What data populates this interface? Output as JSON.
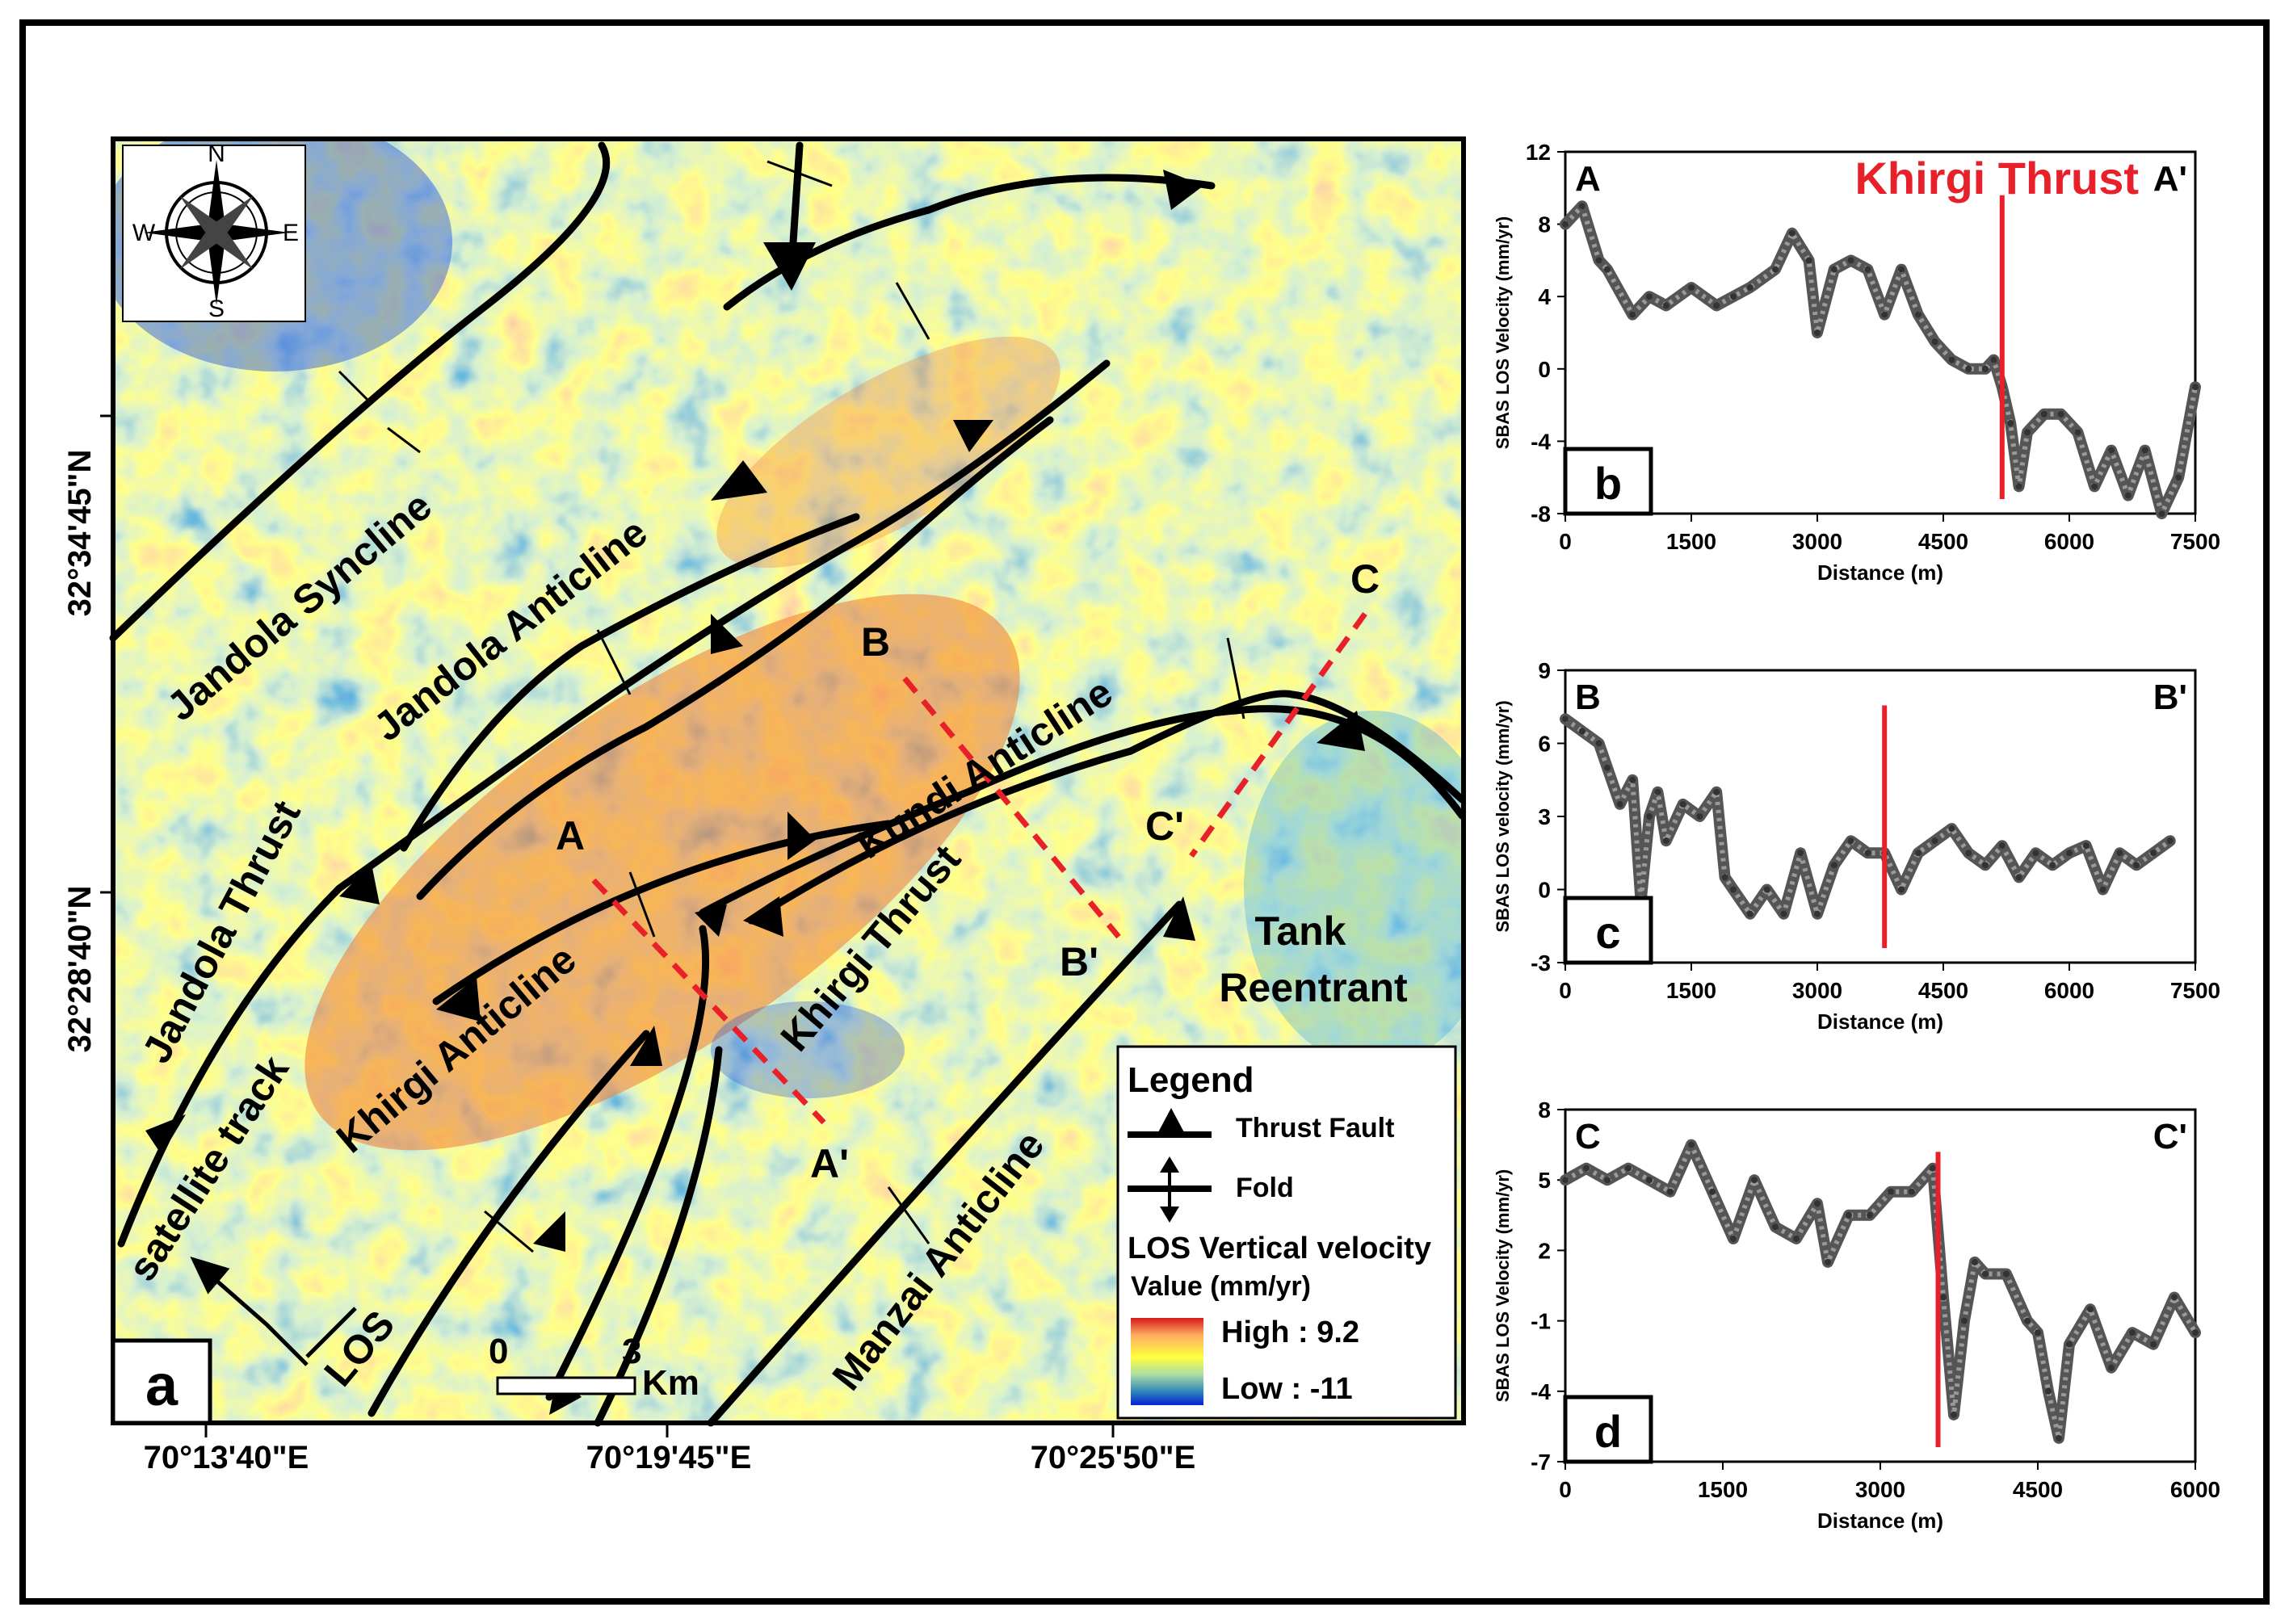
{
  "map": {
    "panel_label": "a",
    "north_arrow": {
      "n": "N",
      "s": "S",
      "e": "E",
      "w": "W"
    },
    "lat_labels": [
      "32°34'45\"N",
      "32°28'40\"N"
    ],
    "lon_labels": [
      "70°13'40\"E",
      "70°19'45\"E",
      "70°25'50\"E"
    ],
    "structures": [
      "Jandola Syncline",
      "Jandola Anticline",
      "Jandola Thrust",
      "Kundi Anticline",
      "Khirgi Anticline",
      "Khirgi Thrust",
      "Manzai Anticline"
    ],
    "region_label": [
      "Tank",
      "Reentrant"
    ],
    "satellite_track": "satellite track",
    "los": "LOS",
    "profile_points": {
      "a": "A",
      "a_end": "A'",
      "b": "B",
      "b_end": "B'",
      "c": "C",
      "c_end": "C'"
    },
    "scale_bar": {
      "start": "0",
      "end": "3",
      "unit": "Km"
    },
    "legend": {
      "title": "Legend",
      "thrust": "Thrust Fault",
      "fold": "Fold",
      "velocity_title": "LOS Vertical velocity",
      "value_label": "Value (mm/yr)",
      "high": "High : 9.2",
      "low": "Low : -11",
      "high_value": 9.2,
      "low_value": -11
    },
    "colors": {
      "fault": "#000000",
      "profile_line": "#e8202a",
      "ramp": [
        "#d7191c",
        "#fdae61",
        "#ffff40",
        "#abdda4",
        "#2b83ba",
        "#0a1fd8"
      ]
    }
  },
  "chart_data": [
    {
      "type": "line",
      "panel_label": "b",
      "start_label": "A",
      "end_label": "A'",
      "annotation": "Khirgi Thrust",
      "xlabel": "Distance (m)",
      "ylabel": "SBAS LOS Velocity (mm/yr)",
      "xlim": [
        0,
        7500
      ],
      "ylim": [
        -8,
        12
      ],
      "xticks": [
        0,
        1500,
        3000,
        4500,
        6000,
        7500
      ],
      "yticks": [
        -8,
        -4,
        0,
        4,
        8,
        12
      ],
      "marker_x": 5200,
      "series": [
        {
          "name": "A-A'",
          "x": [
            0,
            200,
            400,
            500,
            800,
            1000,
            1200,
            1500,
            1800,
            2000,
            2200,
            2500,
            2700,
            2900,
            3000,
            3200,
            3400,
            3600,
            3800,
            4000,
            4200,
            4400,
            4600,
            4800,
            5000,
            5100,
            5200,
            5300,
            5400,
            5500,
            5700,
            5900,
            6100,
            6300,
            6500,
            6700,
            6900,
            7100,
            7300,
            7500
          ],
          "y": [
            8,
            9,
            6,
            5.5,
            3,
            4,
            3.5,
            4.5,
            3.5,
            4,
            4.5,
            5.5,
            7.5,
            6,
            2,
            5.5,
            6,
            5.5,
            3,
            5.5,
            3,
            1.5,
            0.5,
            0,
            0,
            0.5,
            -1,
            -3,
            -6.5,
            -3.5,
            -2.5,
            -2.5,
            -3.5,
            -6.5,
            -4.5,
            -7,
            -4.5,
            -8,
            -6,
            -1
          ]
        }
      ]
    },
    {
      "type": "line",
      "panel_label": "c",
      "start_label": "B",
      "end_label": "B'",
      "xlabel": "Distance (m)",
      "ylabel": "SBAS LOS velocity (mm/yr)",
      "xlim": [
        0,
        7500
      ],
      "ylim": [
        -3,
        9
      ],
      "xticks": [
        0,
        1500,
        3000,
        4500,
        6000,
        7500
      ],
      "yticks": [
        -3,
        0,
        3,
        6,
        9
      ],
      "marker_x": 3800,
      "series": [
        {
          "name": "B-B'",
          "x": [
            0,
            200,
            400,
            500,
            650,
            800,
            900,
            1000,
            1100,
            1200,
            1400,
            1600,
            1800,
            1900,
            2000,
            2200,
            2400,
            2600,
            2800,
            3000,
            3200,
            3400,
            3600,
            3800,
            4000,
            4200,
            4400,
            4600,
            4800,
            5000,
            5200,
            5400,
            5600,
            5800,
            6000,
            6200,
            6400,
            6600,
            6800,
            7000,
            7200
          ],
          "y": [
            7,
            6.5,
            6,
            5,
            3.5,
            4.5,
            -0.5,
            3,
            4,
            2,
            3.5,
            3,
            4,
            0.5,
            0,
            -1,
            0,
            -1,
            1.5,
            -1,
            1,
            2,
            1.5,
            1.5,
            0,
            1.5,
            2,
            2.5,
            1.5,
            1,
            1.8,
            0.5,
            1.5,
            1,
            1.5,
            1.8,
            0,
            1.5,
            1,
            1.5,
            2
          ]
        }
      ]
    },
    {
      "type": "line",
      "panel_label": "d",
      "start_label": "C",
      "end_label": "C'",
      "xlabel": "Distance (m)",
      "ylabel": "SBAS LOS Velocity (mm/yr)",
      "xlim": [
        0,
        6000
      ],
      "ylim": [
        -7,
        8
      ],
      "xticks": [
        0,
        1500,
        3000,
        4500,
        6000
      ],
      "yticks": [
        -7,
        -4,
        -1,
        2,
        5,
        8
      ],
      "marker_x": 3550,
      "series": [
        {
          "name": "C-C'",
          "x": [
            0,
            200,
            400,
            600,
            800,
            1000,
            1200,
            1400,
            1600,
            1800,
            2000,
            2200,
            2400,
            2500,
            2700,
            2900,
            3100,
            3300,
            3500,
            3600,
            3700,
            3800,
            3900,
            4000,
            4200,
            4400,
            4500,
            4600,
            4700,
            4800,
            5000,
            5200,
            5400,
            5600,
            5800,
            6000
          ],
          "y": [
            5,
            5.5,
            5,
            5.5,
            5,
            4.5,
            6.5,
            4.5,
            2.5,
            5,
            3,
            2.5,
            4,
            1.5,
            3.5,
            3.5,
            4.5,
            4.5,
            5.5,
            0,
            -5,
            -1,
            1.5,
            1,
            1,
            -1,
            -1.5,
            -4,
            -6,
            -2,
            -0.5,
            -3,
            -1.5,
            -2,
            0,
            -1.5
          ]
        }
      ]
    }
  ]
}
